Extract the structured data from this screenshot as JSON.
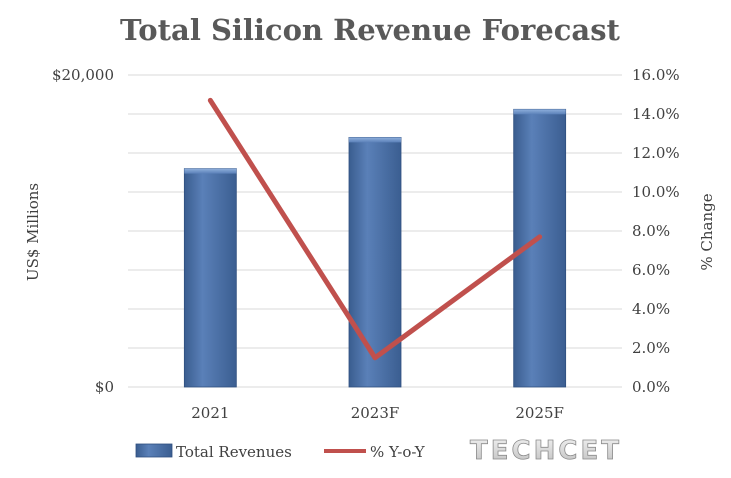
{
  "chart_data": {
    "type": "bar",
    "title": "Total Silicon Revenue Forecast",
    "categories": [
      "2021",
      "2023F",
      "2025F"
    ],
    "series": [
      {
        "name": "Total Revenues",
        "type": "bar",
        "axis": "left",
        "values": [
          14000,
          16000,
          17800
        ],
        "color": "#4a6fa5"
      },
      {
        "name": "% Y-o-Y",
        "type": "line",
        "axis": "right",
        "values": [
          14.7,
          1.5,
          7.7
        ],
        "color": "#c0504d"
      }
    ],
    "ylabel": "US$ Millions",
    "ylabel_right": "% Change",
    "ylim": [
      0,
      20000
    ],
    "ylim_right": [
      0,
      16
    ],
    "y_tick_labels": [
      "$20,000",
      "$0"
    ],
    "y_right_tick_labels": [
      "16.0%",
      "14.0%",
      "12.0%",
      "10.0%",
      "8.0%",
      "6.0%",
      "4.0%",
      "2.0%",
      "0.0%"
    ],
    "grid": true,
    "legend_position": "bottom"
  },
  "watermark": {
    "text": "TECHCET"
  }
}
